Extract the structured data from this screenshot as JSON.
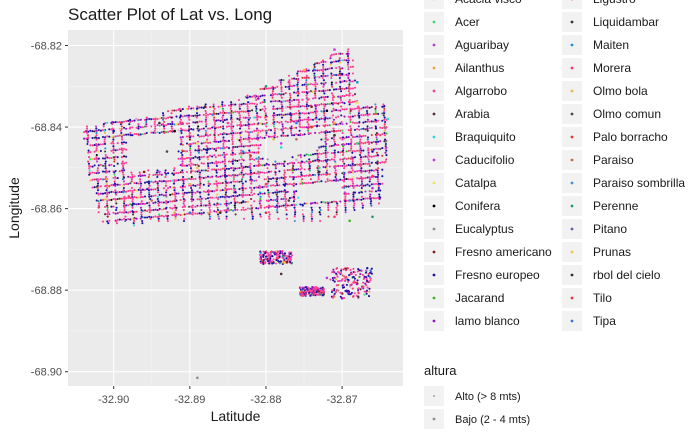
{
  "chart_data": {
    "type": "scatter",
    "title": "Scatter Plot of Lat vs. Long",
    "xlabel": "Latitude",
    "ylabel": "Longitude",
    "xlim": [
      -32.906,
      -32.862
    ],
    "ylim": [
      -68.9035,
      -68.8162
    ],
    "x_ticks": [
      -32.9,
      -32.89,
      -32.88,
      -32.87
    ],
    "x_tick_labels": [
      "-32.90",
      "-32.89",
      "-32.88",
      "-32.87"
    ],
    "y_ticks": [
      -68.82,
      -68.84,
      -68.86,
      -68.88,
      -68.9
    ],
    "y_tick_labels": [
      "-68.82",
      "-68.84",
      "-68.86",
      "-68.88",
      "-68.90"
    ],
    "grid": true,
    "legend_position": "right",
    "series_colors": [
      "#e7a3d6",
      "#3cdb73",
      "#b53bd6",
      "#f0a03c",
      "#ff3d9a",
      "#5a2c2c",
      "#2fd8d8",
      "#c23be0",
      "#e6e85a",
      "#000000",
      "#8c8c8c",
      "#8c1c1c",
      "#1f10a3",
      "#37b818",
      "#9b11c2",
      "#ff2f6d",
      "#3b2e2e",
      "#1d8fd6",
      "#f03c6a",
      "#f0b34a",
      "#474747",
      "#d6401a",
      "#c46a4a",
      "#3d8fd6",
      "#1f9a6a",
      "#5f5fa8",
      "#f2c14e",
      "#303030",
      "#e03a3a",
      "#2f78d6"
    ],
    "series": [
      {
        "name": "Acacia visco",
        "points": [
          [
            -32.897,
            -68.838
          ],
          [
            -32.876,
            -68.848
          ]
        ]
      },
      {
        "name": "Acer",
        "points": [
          [
            -32.873,
            -68.85
          ],
          [
            -32.868,
            -68.844
          ]
        ]
      },
      {
        "name": "Aguaribay",
        "points": [
          [
            -32.872,
            -68.877
          ],
          [
            -32.894,
            -68.851
          ],
          [
            -32.866,
            -68.855
          ]
        ]
      },
      {
        "name": "Ailanthus",
        "points": [
          [
            -32.892,
            -68.861
          ],
          [
            -32.871,
            -68.839
          ]
        ]
      },
      {
        "name": "Algarrobo",
        "points": [
          [
            -32.885,
            -68.839
          ],
          [
            -32.877,
            -68.829
          ],
          [
            -32.869,
            -68.851
          ]
        ]
      },
      {
        "name": "Arabia",
        "points": [
          [
            -32.886,
            -68.861
          ],
          [
            -32.878,
            -68.876
          ]
        ]
      },
      {
        "name": "Braquiquito",
        "points": [
          [
            -32.878,
            -68.845
          ],
          [
            -32.864,
            -68.838
          ]
        ]
      },
      {
        "name": "Caducifolio",
        "points": [
          [
            -32.878,
            -68.844
          ],
          [
            -32.871,
            -68.821
          ]
        ]
      },
      {
        "name": "Catalpa",
        "points": [
          [
            -32.889,
            -68.844
          ],
          [
            -32.868,
            -68.834
          ]
        ]
      },
      {
        "name": "Conifera",
        "points": [
          [
            -32.892,
            -68.841
          ],
          [
            -32.872,
            -68.836
          ]
        ]
      },
      {
        "name": "Eucalyptus",
        "points": [
          [
            -32.889,
            -68.9015
          ],
          [
            -32.881,
            -68.851
          ]
        ]
      },
      {
        "name": "Fresno americano",
        "points": [
          [
            -32.896,
            -68.851
          ],
          [
            -32.874,
            -68.835
          ]
        ]
      },
      {
        "name": "Fresno europeo",
        "points": [
          [
            -32.9,
            -68.841
          ],
          [
            -32.884,
            -68.856
          ],
          [
            -32.87,
            -68.827
          ],
          [
            -32.866,
            -68.846
          ]
        ]
      },
      {
        "name": "Jacarand",
        "points": [
          [
            -32.879,
            -68.843
          ],
          [
            -32.869,
            -68.863
          ]
        ]
      },
      {
        "name": "lamo blanco",
        "points": [
          [
            -32.87,
            -68.882
          ],
          [
            -32.881,
            -68.833
          ]
        ]
      },
      {
        "name": "Ligustro",
        "points": [
          [
            -32.891,
            -68.839
          ],
          [
            -32.866,
            -68.852
          ]
        ]
      },
      {
        "name": "Liquidambar",
        "points": [
          [
            -32.888,
            -68.835
          ],
          [
            -32.873,
            -68.851
          ]
        ]
      },
      {
        "name": "Maiten",
        "points": [
          [
            -32.883,
            -68.846
          ],
          [
            -32.868,
            -68.829
          ]
        ]
      },
      {
        "name": "Morera",
        "points": [
          [
            -32.898,
            -68.857
          ],
          [
            -32.88,
            -68.854
          ],
          [
            -32.871,
            -68.862
          ]
        ]
      },
      {
        "name": "Olmo bola",
        "points": [
          [
            -32.89,
            -68.854
          ],
          [
            -32.875,
            -68.826
          ]
        ]
      },
      {
        "name": "Olmo comun",
        "points": [
          [
            -32.893,
            -68.846
          ],
          [
            -32.877,
            -68.858
          ]
        ]
      },
      {
        "name": "Palo borracho",
        "points": [
          [
            -32.874,
            -68.84
          ],
          [
            -32.882,
            -68.847
          ]
        ]
      },
      {
        "name": "Paraiso",
        "points": [
          [
            -32.876,
            -68.843
          ],
          [
            -32.895,
            -68.858
          ]
        ]
      },
      {
        "name": "Paraiso sombrilla",
        "points": [
          [
            -32.887,
            -68.837
          ],
          [
            -32.869,
            -68.858
          ]
        ]
      },
      {
        "name": "Perenne",
        "points": [
          [
            -32.88,
            -68.83
          ],
          [
            -32.866,
            -68.862
          ]
        ]
      },
      {
        "name": "Pitano",
        "points": [
          [
            -32.885,
            -68.86
          ],
          [
            -32.873,
            -68.845
          ]
        ]
      },
      {
        "name": "Prunas",
        "points": [
          [
            -32.889,
            -68.85
          ],
          [
            -32.879,
            -68.843
          ]
        ]
      },
      {
        "name": "rbol del cielo",
        "points": [
          [
            -32.894,
            -68.839
          ],
          [
            -32.871,
            -68.842
          ]
        ]
      },
      {
        "name": "Tilo",
        "points": [
          [
            -32.899,
            -68.839
          ],
          [
            -32.88,
            -68.861
          ]
        ]
      },
      {
        "name": "Tipa",
        "points": [
          [
            -32.89,
            -68.861
          ],
          [
            -32.876,
            -68.839
          ]
        ]
      }
    ],
    "legend2": {
      "title": "altura",
      "entries": [
        "Alto (> 8 mts)",
        "Bajo (2 - 4 mts)"
      ]
    }
  }
}
